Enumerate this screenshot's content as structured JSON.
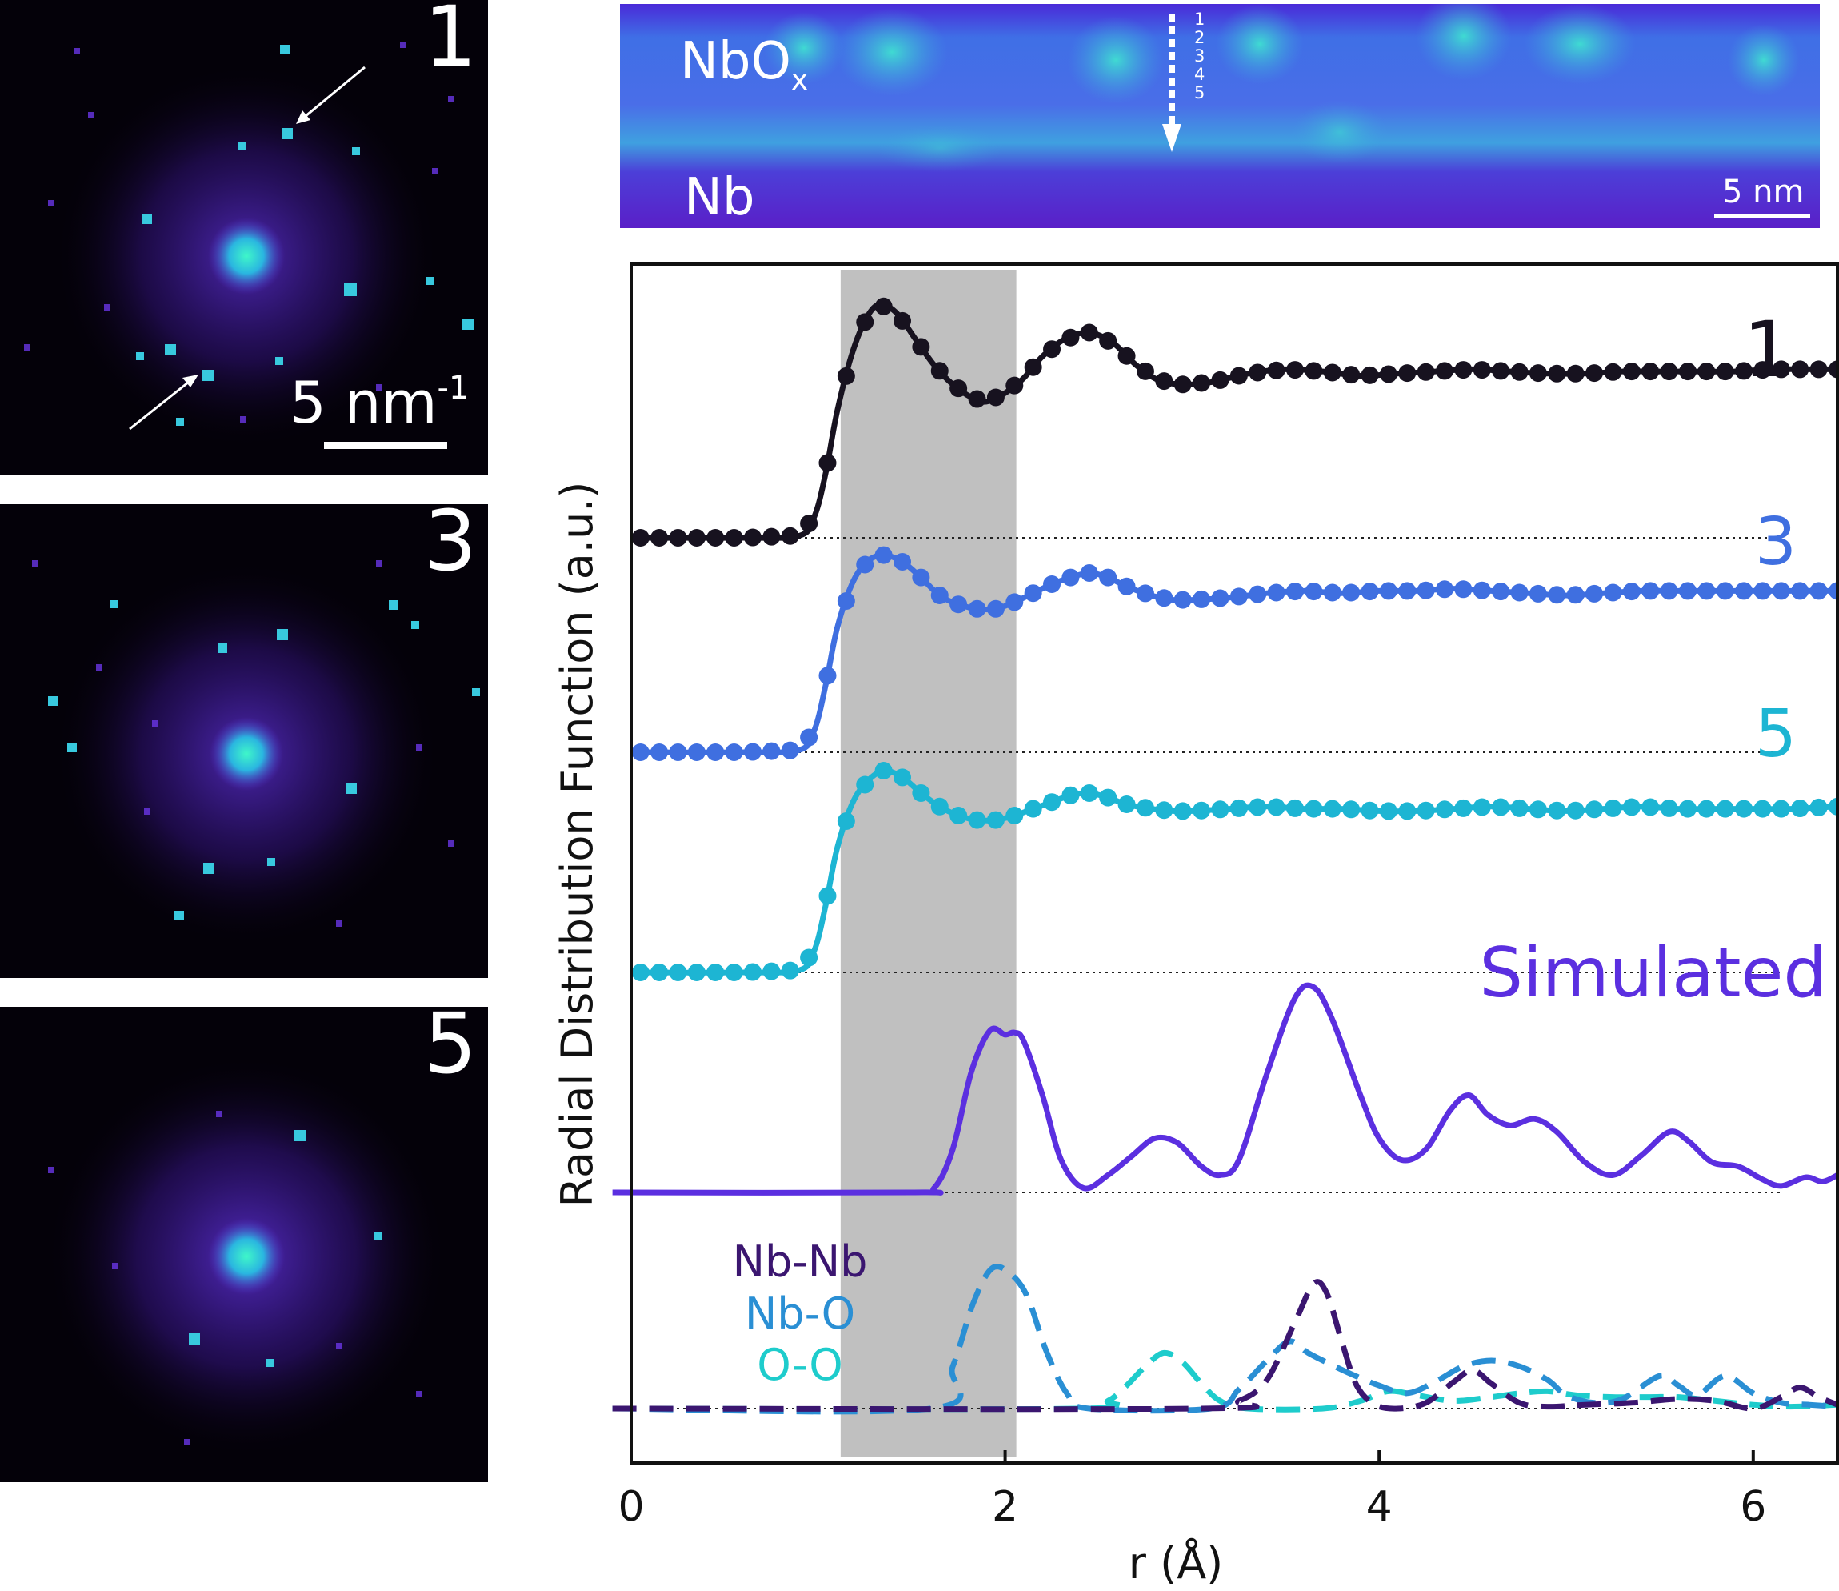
{
  "diffraction_panels": [
    {
      "label": "1",
      "scale_text": "5 nm",
      "scale_sup": "-1"
    },
    {
      "label": "3"
    },
    {
      "label": "5"
    }
  ],
  "stem_image": {
    "oxide_label": "NbO",
    "oxide_sub": "x",
    "metal_label": "Nb",
    "position_marks": [
      "1",
      "2",
      "3",
      "4",
      "5"
    ],
    "scale_text": "5 nm"
  },
  "colors": {
    "trace_1": "#17121f",
    "trace_3": "#3f6fe0",
    "trace_5": "#1db5d3",
    "simulated": "#5b2fe0",
    "nb_nb": "#3b1670",
    "nb_o": "#2a8fd4",
    "o_o": "#1ecccc",
    "shade": "#bdbdbd"
  },
  "chart_data": {
    "type": "line",
    "xlabel": "r (Å)",
    "ylabel": "Radial Distribution Function (a.u.)",
    "xlim": [
      0,
      6.45
    ],
    "xticks": [
      "0",
      "2",
      "4",
      "6"
    ],
    "shaded_region": [
      1.12,
      2.06
    ],
    "series": [
      {
        "name": "1",
        "style": "markers+line",
        "offset": 4,
        "points": [
          [
            0.05,
            0
          ],
          [
            0.6,
            0
          ],
          [
            0.9,
            0.01
          ],
          [
            0.98,
            0.1
          ],
          [
            1.04,
            0.3
          ],
          [
            1.1,
            0.58
          ],
          [
            1.18,
            0.85
          ],
          [
            1.26,
            1.02
          ],
          [
            1.33,
            1.08
          ],
          [
            1.42,
            1.04
          ],
          [
            1.52,
            0.92
          ],
          [
            1.62,
            0.8
          ],
          [
            1.72,
            0.71
          ],
          [
            1.82,
            0.65
          ],
          [
            1.9,
            0.63
          ],
          [
            2.0,
            0.67
          ],
          [
            2.1,
            0.74
          ],
          [
            2.2,
            0.84
          ],
          [
            2.32,
            0.92
          ],
          [
            2.45,
            0.95
          ],
          [
            2.58,
            0.9
          ],
          [
            2.7,
            0.8
          ],
          [
            2.82,
            0.73
          ],
          [
            2.95,
            0.71
          ],
          [
            3.1,
            0.72
          ],
          [
            3.3,
            0.76
          ],
          [
            3.5,
            0.78
          ],
          [
            3.7,
            0.77
          ],
          [
            3.9,
            0.75
          ],
          [
            4.1,
            0.76
          ],
          [
            4.3,
            0.77
          ],
          [
            4.5,
            0.78
          ],
          [
            4.7,
            0.77
          ],
          [
            4.9,
            0.76
          ],
          [
            5.1,
            0.76
          ],
          [
            5.3,
            0.77
          ],
          [
            5.5,
            0.77
          ],
          [
            5.7,
            0.77
          ],
          [
            5.9,
            0.77
          ],
          [
            6.1,
            0.78
          ],
          [
            6.3,
            0.78
          ],
          [
            6.45,
            0.78
          ]
        ]
      },
      {
        "name": "3",
        "style": "markers+line",
        "offset": 3,
        "points": [
          [
            0.05,
            0
          ],
          [
            0.6,
            0
          ],
          [
            0.9,
            0.01
          ],
          [
            0.98,
            0.1
          ],
          [
            1.04,
            0.3
          ],
          [
            1.1,
            0.55
          ],
          [
            1.18,
            0.75
          ],
          [
            1.26,
            0.85
          ],
          [
            1.35,
            0.88
          ],
          [
            1.45,
            0.85
          ],
          [
            1.55,
            0.78
          ],
          [
            1.65,
            0.7
          ],
          [
            1.75,
            0.66
          ],
          [
            1.85,
            0.64
          ],
          [
            1.95,
            0.64
          ],
          [
            2.05,
            0.67
          ],
          [
            2.15,
            0.71
          ],
          [
            2.25,
            0.75
          ],
          [
            2.35,
            0.78
          ],
          [
            2.45,
            0.8
          ],
          [
            2.55,
            0.78
          ],
          [
            2.65,
            0.74
          ],
          [
            2.78,
            0.7
          ],
          [
            2.9,
            0.68
          ],
          [
            3.0,
            0.68
          ],
          [
            3.2,
            0.69
          ],
          [
            3.4,
            0.71
          ],
          [
            3.6,
            0.72
          ],
          [
            3.8,
            0.71
          ],
          [
            4.0,
            0.72
          ],
          [
            4.2,
            0.72
          ],
          [
            4.4,
            0.73
          ],
          [
            4.6,
            0.72
          ],
          [
            4.8,
            0.71
          ],
          [
            5.0,
            0.7
          ],
          [
            5.2,
            0.71
          ],
          [
            5.4,
            0.72
          ],
          [
            5.6,
            0.72
          ],
          [
            5.8,
            0.72
          ],
          [
            6.0,
            0.72
          ],
          [
            6.2,
            0.72
          ],
          [
            6.45,
            0.72
          ]
        ]
      },
      {
        "name": "5",
        "style": "markers+line",
        "offset": 2,
        "points": [
          [
            0.05,
            0
          ],
          [
            0.6,
            0
          ],
          [
            0.9,
            0.01
          ],
          [
            0.98,
            0.1
          ],
          [
            1.04,
            0.3
          ],
          [
            1.1,
            0.55
          ],
          [
            1.18,
            0.75
          ],
          [
            1.26,
            0.85
          ],
          [
            1.35,
            0.9
          ],
          [
            1.45,
            0.87
          ],
          [
            1.55,
            0.8
          ],
          [
            1.65,
            0.74
          ],
          [
            1.75,
            0.7
          ],
          [
            1.85,
            0.68
          ],
          [
            1.95,
            0.68
          ],
          [
            2.05,
            0.7
          ],
          [
            2.15,
            0.73
          ],
          [
            2.25,
            0.76
          ],
          [
            2.35,
            0.79
          ],
          [
            2.45,
            0.8
          ],
          [
            2.55,
            0.78
          ],
          [
            2.65,
            0.75
          ],
          [
            2.78,
            0.73
          ],
          [
            2.9,
            0.72
          ],
          [
            3.0,
            0.72
          ],
          [
            3.2,
            0.73
          ],
          [
            3.4,
            0.74
          ],
          [
            3.6,
            0.73
          ],
          [
            3.8,
            0.73
          ],
          [
            4.0,
            0.72
          ],
          [
            4.2,
            0.72
          ],
          [
            4.4,
            0.73
          ],
          [
            4.6,
            0.74
          ],
          [
            4.8,
            0.73
          ],
          [
            5.0,
            0.72
          ],
          [
            5.2,
            0.73
          ],
          [
            5.4,
            0.74
          ],
          [
            5.6,
            0.73
          ],
          [
            5.8,
            0.73
          ],
          [
            6.0,
            0.73
          ],
          [
            6.2,
            0.73
          ],
          [
            6.45,
            0.74
          ]
        ]
      },
      {
        "name": "Simulated",
        "style": "line",
        "offset": 1,
        "points": [
          [
            -0.1,
            0
          ],
          [
            1.5,
            0
          ],
          [
            1.62,
            0.02
          ],
          [
            1.72,
            0.2
          ],
          [
            1.82,
            0.56
          ],
          [
            1.92,
            0.75
          ],
          [
            2.0,
            0.73
          ],
          [
            2.05,
            0.74
          ],
          [
            2.1,
            0.7
          ],
          [
            2.2,
            0.45
          ],
          [
            2.3,
            0.15
          ],
          [
            2.42,
            0.02
          ],
          [
            2.55,
            0.08
          ],
          [
            2.68,
            0.17
          ],
          [
            2.8,
            0.25
          ],
          [
            2.92,
            0.23
          ],
          [
            3.05,
            0.12
          ],
          [
            3.15,
            0.08
          ],
          [
            3.25,
            0.15
          ],
          [
            3.4,
            0.55
          ],
          [
            3.55,
            0.9
          ],
          [
            3.65,
            0.95
          ],
          [
            3.75,
            0.8
          ],
          [
            3.9,
            0.45
          ],
          [
            4.0,
            0.25
          ],
          [
            4.12,
            0.15
          ],
          [
            4.25,
            0.2
          ],
          [
            4.38,
            0.38
          ],
          [
            4.48,
            0.45
          ],
          [
            4.58,
            0.36
          ],
          [
            4.7,
            0.31
          ],
          [
            4.83,
            0.34
          ],
          [
            4.95,
            0.28
          ],
          [
            5.1,
            0.14
          ],
          [
            5.25,
            0.08
          ],
          [
            5.4,
            0.17
          ],
          [
            5.55,
            0.28
          ],
          [
            5.65,
            0.24
          ],
          [
            5.78,
            0.14
          ],
          [
            5.92,
            0.12
          ],
          [
            6.05,
            0.06
          ],
          [
            6.15,
            0.03
          ],
          [
            6.28,
            0.07
          ],
          [
            6.37,
            0.05
          ],
          [
            6.45,
            0.08
          ]
        ]
      },
      {
        "name": "Nb-Nb",
        "style": "dashed",
        "offset": 0,
        "points": [
          [
            -0.1,
            0
          ],
          [
            3.05,
            0
          ],
          [
            3.25,
            0.04
          ],
          [
            3.4,
            0.15
          ],
          [
            3.55,
            0.45
          ],
          [
            3.65,
            0.65
          ],
          [
            3.72,
            0.6
          ],
          [
            3.8,
            0.35
          ],
          [
            3.88,
            0.12
          ],
          [
            3.98,
            0.02
          ],
          [
            4.1,
            0
          ],
          [
            4.25,
            0.03
          ],
          [
            4.4,
            0.14
          ],
          [
            4.5,
            0.2
          ],
          [
            4.6,
            0.13
          ],
          [
            4.75,
            0.03
          ],
          [
            4.9,
            0.01
          ],
          [
            5.1,
            0.02
          ],
          [
            5.35,
            0.03
          ],
          [
            5.6,
            0.05
          ],
          [
            5.8,
            0.04
          ],
          [
            6.0,
            0.0
          ],
          [
            6.15,
            0.06
          ],
          [
            6.25,
            0.11
          ],
          [
            6.35,
            0.06
          ],
          [
            6.45,
            0.02
          ]
        ]
      },
      {
        "name": "Nb-O",
        "style": "dashed",
        "offset": 0,
        "points": [
          [
            -0.1,
            0
          ],
          [
            1.6,
            0
          ],
          [
            1.72,
            0.22
          ],
          [
            1.83,
            0.55
          ],
          [
            1.93,
            0.73
          ],
          [
            2.03,
            0.7
          ],
          [
            2.12,
            0.58
          ],
          [
            2.22,
            0.3
          ],
          [
            2.33,
            0.08
          ],
          [
            2.45,
            0
          ],
          [
            3.1,
            0
          ],
          [
            3.25,
            0.1
          ],
          [
            3.4,
            0.25
          ],
          [
            3.52,
            0.35
          ],
          [
            3.62,
            0.29
          ],
          [
            3.72,
            0.24
          ],
          [
            3.85,
            0.18
          ],
          [
            4.0,
            0.12
          ],
          [
            4.15,
            0.08
          ],
          [
            4.3,
            0.14
          ],
          [
            4.45,
            0.22
          ],
          [
            4.6,
            0.25
          ],
          [
            4.75,
            0.22
          ],
          [
            4.9,
            0.15
          ],
          [
            5.0,
            0.07
          ],
          [
            5.15,
            0.03
          ],
          [
            5.3,
            0.05
          ],
          [
            5.5,
            0.17
          ],
          [
            5.6,
            0.12
          ],
          [
            5.7,
            0.07
          ],
          [
            5.85,
            0.17
          ],
          [
            6.0,
            0.08
          ],
          [
            6.15,
            0.03
          ],
          [
            6.3,
            0.02
          ],
          [
            6.45,
            0.01
          ]
        ]
      },
      {
        "name": "O-O",
        "style": "dashed",
        "offset": 0,
        "points": [
          [
            -0.1,
            0
          ],
          [
            2.4,
            0
          ],
          [
            2.55,
            0.04
          ],
          [
            2.65,
            0.12
          ],
          [
            2.75,
            0.22
          ],
          [
            2.85,
            0.29
          ],
          [
            2.95,
            0.24
          ],
          [
            3.05,
            0.13
          ],
          [
            3.15,
            0.04
          ],
          [
            3.3,
            0
          ],
          [
            3.7,
            0
          ],
          [
            3.9,
            0.04
          ],
          [
            4.05,
            0.09
          ],
          [
            4.2,
            0.07
          ],
          [
            4.4,
            0.04
          ],
          [
            4.6,
            0.06
          ],
          [
            4.75,
            0.08
          ],
          [
            4.9,
            0.09
          ],
          [
            5.05,
            0.07
          ],
          [
            5.25,
            0.06
          ],
          [
            5.45,
            0.06
          ],
          [
            5.6,
            0.06
          ],
          [
            5.8,
            0.04
          ],
          [
            6.0,
            0.02
          ],
          [
            6.2,
            0.01
          ],
          [
            6.45,
            0.02
          ]
        ]
      }
    ],
    "trace_labels": [
      "1",
      "3",
      "5",
      "Simulated"
    ],
    "legend": [
      "Nb-Nb",
      "Nb-O",
      "O-O"
    ]
  }
}
